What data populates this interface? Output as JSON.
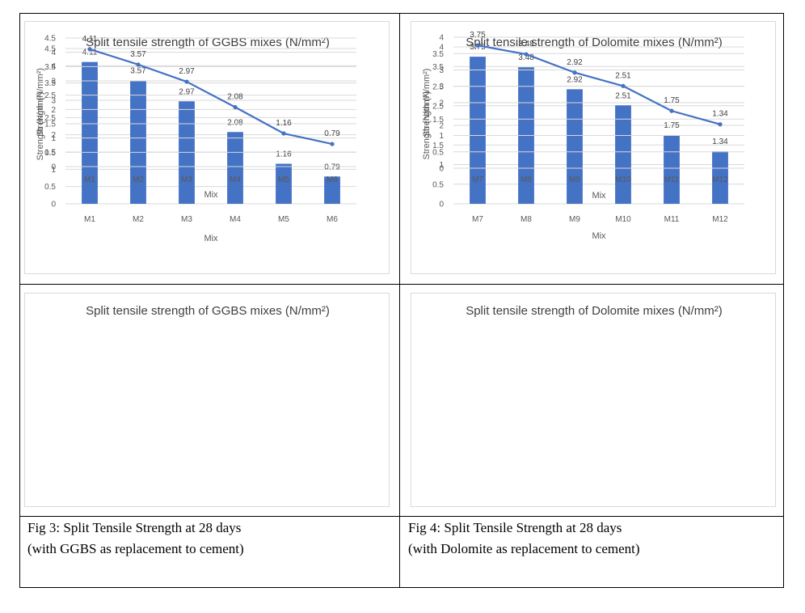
{
  "chart_data": [
    {
      "type": "bar",
      "title": "Split tensile strength of GGBS mixes (N/mm²)",
      "xlabel": "Mix",
      "ylabel": "Strength (N/mm²)",
      "categories": [
        "M1",
        "M2",
        "M3",
        "M4",
        "M5",
        "M6"
      ],
      "values": [
        4.11,
        3.57,
        2.97,
        2.08,
        1.16,
        0.79
      ],
      "data_labels": [
        "4.11",
        "3.57",
        "2.97",
        "2.08",
        "1.16",
        "0.79"
      ],
      "ylim": [
        0,
        4.5
      ],
      "yticks": [
        "0",
        "0.5",
        "1",
        "1.5",
        "2",
        "2.5",
        "3",
        "3.5",
        "4",
        "4.5"
      ],
      "grid": true,
      "color": "#4472c4"
    },
    {
      "type": "bar",
      "title": "Split tensile strength of Dolomite mixes (N/mm²)",
      "xlabel": "Mix",
      "ylabel": "Strength (N/mm²)",
      "categories": [
        "M7",
        "M8",
        "M9",
        "M10",
        "M11",
        "M12"
      ],
      "values": [
        3.75,
        3.48,
        2.92,
        2.51,
        1.75,
        1.34
      ],
      "data_labels": [
        "3.75",
        "3.48",
        "2.92",
        "2.51",
        "1.75",
        "1.34"
      ],
      "ylim": [
        0,
        4
      ],
      "yticks": [
        "0",
        "0.5",
        "1",
        "1.5",
        "2",
        "2.5",
        "3",
        "3.5",
        "4"
      ],
      "grid": true,
      "color": "#4472c4"
    },
    {
      "type": "line",
      "title": "Split tensile strength of GGBS mixes (N/mm²)",
      "xlabel": "Mix",
      "ylabel": "Strength (N/mm²)",
      "categories": [
        "M1",
        "M2",
        "M3",
        "M4",
        "M5",
        "M6"
      ],
      "values": [
        4.11,
        3.57,
        2.97,
        2.08,
        1.16,
        0.79
      ],
      "data_labels": [
        "4.11",
        "3.57",
        "2.97",
        "2.08",
        "1.16",
        "0.79"
      ],
      "ylim": [
        0,
        4.5
      ],
      "yticks": [
        "0",
        "0.5",
        "1",
        "1.5",
        "2",
        "2.5",
        "3",
        "3.5",
        "4",
        "4.5"
      ],
      "grid": true,
      "color": "#4472c4"
    },
    {
      "type": "line",
      "title": "Split tensile strength of Dolomite mixes (N/mm²)",
      "xlabel": "Mix",
      "ylabel": "Strength (N/mm²)",
      "categories": [
        "M7",
        "M8",
        "M9",
        "M10",
        "M11",
        "M12"
      ],
      "values": [
        3.75,
        3.48,
        2.92,
        2.51,
        1.75,
        1.34
      ],
      "data_labels": [
        "3.75",
        "3.48",
        "2.92",
        "2.51",
        "1.75",
        "1.34"
      ],
      "ylim": [
        0,
        4
      ],
      "yticks": [
        "0",
        "0.5",
        "1",
        "1.5",
        "2",
        "2.5",
        "3",
        "3.5",
        "4"
      ],
      "grid": true,
      "color": "#4472c4"
    }
  ],
  "captions": {
    "fig3": {
      "line1": "Fig 3: Split Tensile Strength at 28 days",
      "line2": "(with GGBS as replacement to cement)"
    },
    "fig4": {
      "line1": "Fig 4: Split Tensile Strength at 28 days",
      "line2": "(with Dolomite as replacement to cement)"
    }
  }
}
